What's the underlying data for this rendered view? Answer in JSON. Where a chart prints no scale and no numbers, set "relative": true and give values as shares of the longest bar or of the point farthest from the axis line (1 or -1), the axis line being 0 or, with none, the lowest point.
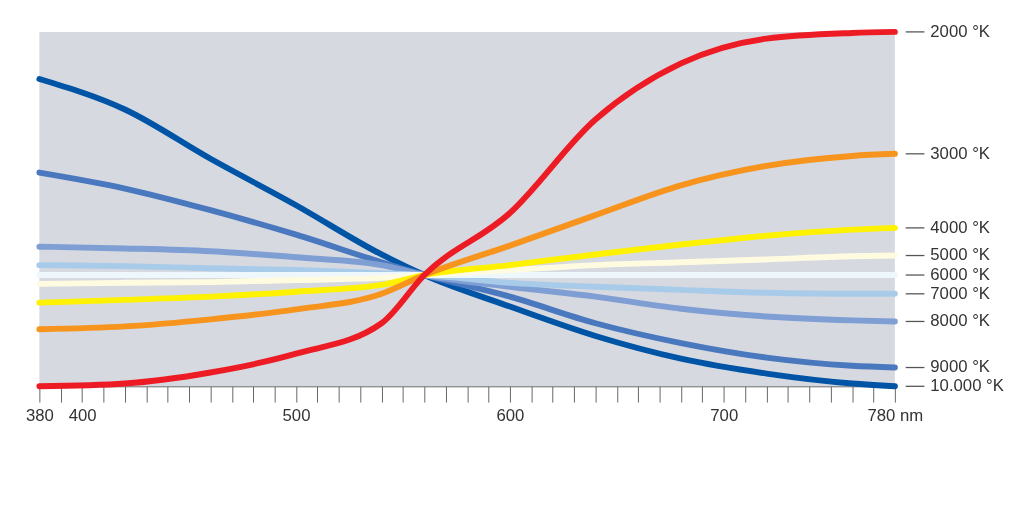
{
  "chart_data": {
    "type": "line",
    "relative": true,
    "x": [
      380,
      420,
      460,
      500,
      540,
      560,
      600,
      640,
      680,
      720,
      760,
      780
    ],
    "xlim": [
      380,
      780
    ],
    "xticks": [
      380,
      {
        "value": 390,
        "label": null
      },
      400,
      {
        "value": 410,
        "label": null
      },
      {
        "value": 420,
        "label": null
      },
      {
        "value": 430,
        "label": null
      },
      {
        "value": 440,
        "label": null
      },
      {
        "value": 450,
        "label": null
      },
      {
        "value": 460,
        "label": null
      },
      {
        "value": 470,
        "label": null
      },
      {
        "value": 480,
        "label": null
      },
      {
        "value": 490,
        "label": null
      },
      500,
      {
        "value": 510,
        "label": null
      },
      {
        "value": 520,
        "label": null
      },
      {
        "value": 530,
        "label": null
      },
      {
        "value": 540,
        "label": null
      },
      {
        "value": 550,
        "label": null
      },
      {
        "value": 560,
        "label": null
      },
      {
        "value": 570,
        "label": null
      },
      {
        "value": 580,
        "label": null
      },
      {
        "value": 590,
        "label": null
      },
      600,
      {
        "value": 610,
        "label": null
      },
      {
        "value": 620,
        "label": null
      },
      {
        "value": 630,
        "label": null
      },
      {
        "value": 640,
        "label": null
      },
      {
        "value": 650,
        "label": null
      },
      {
        "value": 660,
        "label": null
      },
      {
        "value": 670,
        "label": null
      },
      {
        "value": 680,
        "label": null
      },
      {
        "value": 690,
        "label": null
      },
      700,
      {
        "value": 710,
        "label": null
      },
      {
        "value": 720,
        "label": null
      },
      {
        "value": 730,
        "label": null
      },
      {
        "value": 740,
        "label": null
      },
      {
        "value": 750,
        "label": null
      },
      {
        "value": 760,
        "label": null
      },
      {
        "value": 770,
        "label": null
      },
      {
        "value": 780,
        "label": "780 nm"
      }
    ],
    "grid": false,
    "series": [
      {
        "name": "2000 °K",
        "color": "#ed1c24",
        "values": [
          0,
          0.008,
          0.039,
          0.092,
          0.178,
          0.314,
          0.489,
          0.753,
          0.911,
          0.981,
          0.997,
          1
        ]
      },
      {
        "name": "3000 °K",
        "color": "#f7941d",
        "values": [
          0.161,
          0.169,
          0.189,
          0.217,
          0.261,
          0.314,
          0.397,
          0.483,
          0.567,
          0.622,
          0.65,
          0.656
        ]
      },
      {
        "name": "4000 °K",
        "color": "#fff200",
        "values": [
          0.236,
          0.244,
          0.253,
          0.267,
          0.286,
          0.314,
          0.342,
          0.372,
          0.4,
          0.425,
          0.442,
          0.447
        ]
      },
      {
        "name": "5000 °K",
        "color": "#fffbe0",
        "values": [
          0.289,
          0.292,
          0.294,
          0.3,
          0.306,
          0.314,
          0.328,
          0.342,
          0.35,
          0.358,
          0.367,
          0.369
        ]
      },
      {
        "name": "6000 °K",
        "color": "#eef7fc",
        "values": [
          0.314,
          0.314,
          0.314,
          0.314,
          0.314,
          0.314,
          0.314,
          0.314,
          0.314,
          0.314,
          0.314,
          0.314
        ]
      },
      {
        "name": "7000 °K",
        "color": "#a9cbea",
        "values": [
          0.342,
          0.339,
          0.333,
          0.328,
          0.319,
          0.314,
          0.292,
          0.281,
          0.272,
          0.264,
          0.261,
          0.261
        ]
      },
      {
        "name": "8000 °K",
        "color": "#7f9fd4",
        "values": [
          0.394,
          0.389,
          0.381,
          0.364,
          0.342,
          0.314,
          0.281,
          0.253,
          0.219,
          0.197,
          0.186,
          0.183
        ]
      },
      {
        "name": "9000 °K",
        "color": "#4a78bf",
        "values": [
          0.603,
          0.558,
          0.497,
          0.428,
          0.35,
          0.314,
          0.253,
          0.178,
          0.122,
          0.081,
          0.058,
          0.053
        ]
      },
      {
        "name": "10.000 °K",
        "color": "#0054a6",
        "values": [
          0.867,
          0.781,
          0.642,
          0.511,
          0.372,
          0.314,
          0.225,
          0.142,
          0.078,
          0.036,
          0.008,
          0
        ]
      }
    ]
  }
}
